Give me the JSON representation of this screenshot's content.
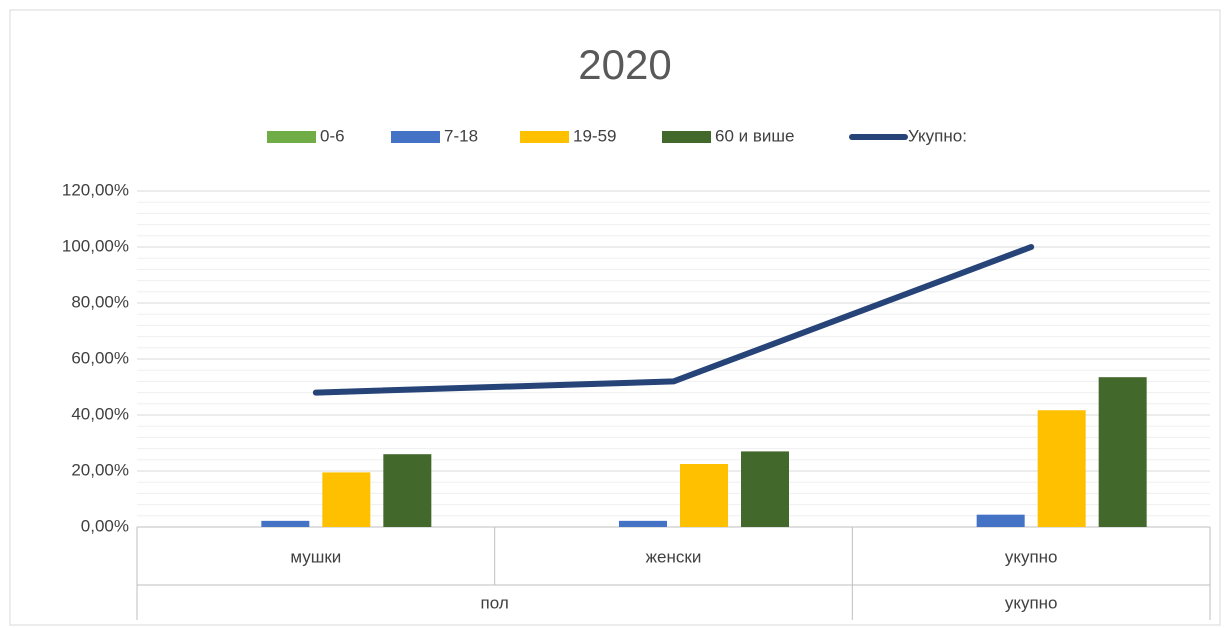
{
  "chart_data": {
    "type": "bar",
    "title": "2020",
    "categories": [
      "мушки",
      "женски",
      "укупно"
    ],
    "groups": [
      {
        "label": "пол",
        "categories": [
          "мушки",
          "женски"
        ]
      },
      {
        "label": "укупно",
        "categories": [
          "укупно"
        ]
      }
    ],
    "series": [
      {
        "name": "0-6",
        "color": "#70ad47",
        "type": "bar",
        "values": [
          0,
          0,
          0
        ]
      },
      {
        "name": "7-18",
        "color": "#4472c4",
        "type": "bar",
        "values": [
          2.2,
          2.2,
          4.4
        ]
      },
      {
        "name": "19-59",
        "color": "#ffc000",
        "type": "bar",
        "values": [
          19.5,
          22.5,
          41.7
        ]
      },
      {
        "name": "60 и више",
        "color": "#43682b",
        "type": "bar",
        "values": [
          26,
          27,
          53.5
        ]
      },
      {
        "name": "Укупно:",
        "color": "#264478",
        "type": "line",
        "values": [
          48,
          52,
          100
        ]
      }
    ],
    "ylim": [
      0,
      120
    ],
    "yticks": [
      {
        "value": 0,
        "label": "0,00%"
      },
      {
        "value": 20,
        "label": "20,00%"
      },
      {
        "value": 40,
        "label": "40,00%"
      },
      {
        "value": 60,
        "label": "60,00%"
      },
      {
        "value": 80,
        "label": "80,00%"
      },
      {
        "value": 100,
        "label": "100,00%"
      },
      {
        "value": 120,
        "label": "120,00%"
      }
    ],
    "grid": true,
    "minor_grid": true,
    "legend": "top"
  }
}
